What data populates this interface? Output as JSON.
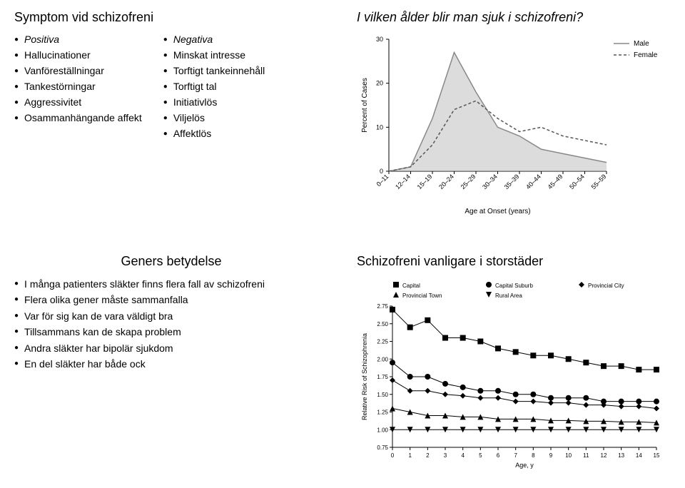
{
  "q1": {
    "title": "Symptom vid schizofreni",
    "left_header": "Positiva",
    "left_items": [
      "Hallucinationer",
      "Vanföreställningar",
      "Tankestörningar",
      "Aggressivitet",
      "Osammanhängande affekt"
    ],
    "right_header": "Negativa",
    "right_items": [
      "Minskat intresse",
      "Torftigt tankeinnehåll",
      "Torftigt tal",
      "Initiativlös",
      "Viljelös",
      "Affektlös"
    ]
  },
  "q2": {
    "title": "I vilken ålder blir man sjuk i schizofreni?",
    "chart": {
      "type": "line-area",
      "x_categories": [
        "0–11",
        "12–14",
        "15–19",
        "20–24",
        "25–29",
        "30–34",
        "35–39",
        "40–44",
        "45–49",
        "50–54",
        "55–59"
      ],
      "x_label": "Age at Onset (years)",
      "y_label": "Percent of Cases",
      "y_ticks": [
        0,
        10,
        20,
        30
      ],
      "ylim": [
        0,
        30
      ],
      "series": [
        {
          "name": "Male",
          "color": "#888888",
          "fill": "#bfbfbf",
          "fill_opacity": 0.55,
          "values": [
            0,
            1,
            12,
            27,
            18,
            10,
            8,
            5,
            4,
            3,
            2
          ]
        },
        {
          "name": "Female",
          "color": "#555555",
          "fill": "none",
          "dash": "4,3",
          "values": [
            0,
            1,
            6,
            14,
            16,
            12,
            9,
            10,
            8,
            7,
            6
          ]
        }
      ],
      "font_size_axis": 9,
      "font_size_legend": 10,
      "background": "#ffffff",
      "axis_color": "#000000"
    }
  },
  "q3": {
    "title": "Geners betydelse",
    "items": [
      "I många patienters släkter finns flera fall av schizofreni",
      "Flera olika gener måste sammanfalla",
      "Var för sig kan de vara väldigt bra",
      "Tillsammans kan de skapa problem",
      "Andra släkter har bipolär sjukdom",
      "En del släkter har både ock"
    ]
  },
  "q4": {
    "title": "Schizofreni vanligare i storstäder",
    "chart": {
      "type": "scatter-line",
      "x_label": "Age, y",
      "y_label": "Relative Risk of Schizophrenia",
      "x_ticks": [
        0,
        1,
        2,
        3,
        4,
        5,
        6,
        7,
        8,
        9,
        10,
        11,
        12,
        13,
        14,
        15
      ],
      "xlim": [
        0,
        15
      ],
      "y_ticks": [
        0.75,
        1.0,
        1.25,
        1.5,
        1.75,
        2.0,
        2.25,
        2.5,
        2.75
      ],
      "ylim": [
        0.75,
        2.75
      ],
      "legend": [
        {
          "name": "Capital",
          "marker": "square",
          "color": "#000000"
        },
        {
          "name": "Capital Suburb",
          "marker": "circle",
          "color": "#000000"
        },
        {
          "name": "Provincial City",
          "marker": "diamond",
          "color": "#000000"
        },
        {
          "name": "Provincial Town",
          "marker": "triangle-up",
          "color": "#000000"
        },
        {
          "name": "Rural Area",
          "marker": "triangle-down",
          "color": "#000000"
        }
      ],
      "series": [
        {
          "name": "Capital",
          "marker": "square",
          "values": [
            2.7,
            2.45,
            2.55,
            2.3,
            2.3,
            2.25,
            2.15,
            2.1,
            2.05,
            2.05,
            2.0,
            1.95,
            1.9,
            1.9,
            1.85,
            1.85
          ]
        },
        {
          "name": "Capital Suburb",
          "marker": "circle",
          "values": [
            1.95,
            1.75,
            1.75,
            1.65,
            1.6,
            1.55,
            1.55,
            1.5,
            1.5,
            1.45,
            1.45,
            1.45,
            1.4,
            1.4,
            1.4,
            1.4
          ]
        },
        {
          "name": "Provincial City",
          "marker": "diamond",
          "values": [
            1.7,
            1.55,
            1.55,
            1.5,
            1.48,
            1.45,
            1.45,
            1.4,
            1.4,
            1.38,
            1.38,
            1.35,
            1.35,
            1.33,
            1.33,
            1.3
          ]
        },
        {
          "name": "Provincial Town",
          "marker": "triangle-up",
          "values": [
            1.3,
            1.25,
            1.2,
            1.2,
            1.18,
            1.18,
            1.15,
            1.15,
            1.15,
            1.13,
            1.13,
            1.12,
            1.12,
            1.11,
            1.11,
            1.1
          ]
        },
        {
          "name": "Rural Area",
          "marker": "triangle-down",
          "values": [
            1.0,
            1.0,
            1.0,
            1.0,
            1.0,
            1.0,
            1.0,
            1.0,
            1.0,
            1.0,
            1.0,
            1.0,
            1.0,
            1.0,
            1.0,
            1.0
          ]
        }
      ],
      "font_size_axis": 8,
      "font_size_legend": 8,
      "marker_size": 4,
      "color": "#000000",
      "background": "#ffffff"
    }
  }
}
